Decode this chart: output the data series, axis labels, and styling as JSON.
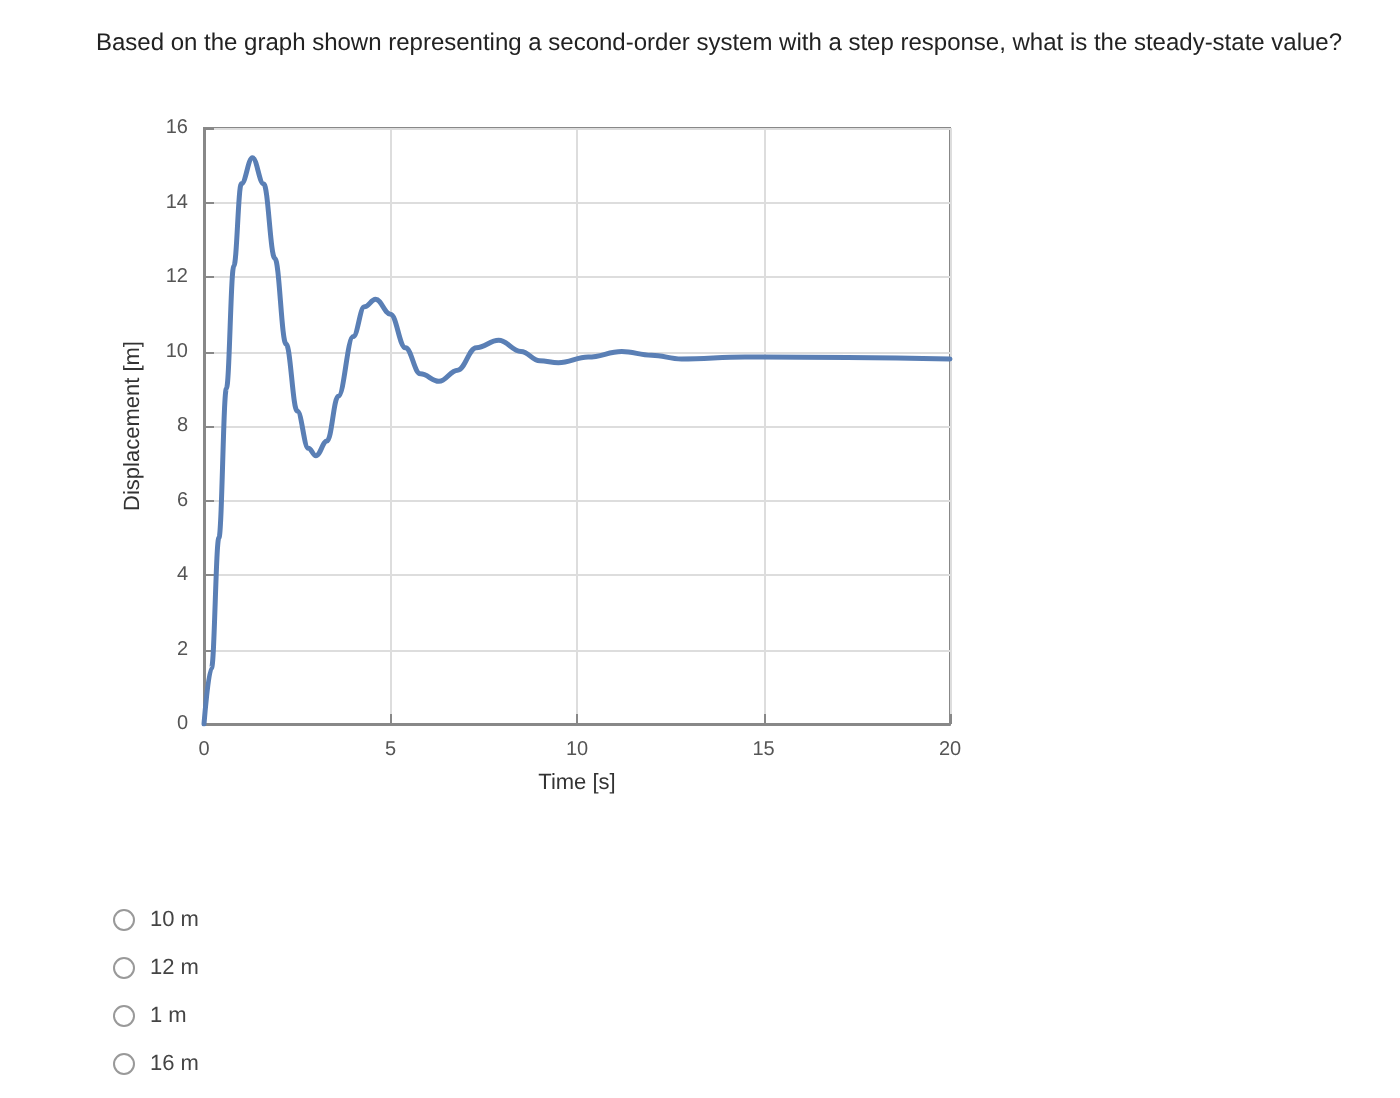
{
  "chart_data": {
    "type": "line",
    "title": "Based on the graph shown representing a second-order system with a step response, what is the steady-state value?",
    "xlabel": "Time [s]",
    "ylabel": "Displacement [m]",
    "series": [
      {
        "color": "#5a7fb5",
        "x": [
          0,
          0.2,
          0.4,
          0.6,
          0.8,
          1.0,
          1.3,
          1.6,
          1.9,
          2.2,
          2.5,
          2.8,
          3.0,
          3.3,
          3.6,
          4.0,
          4.3,
          4.6,
          5.0,
          5.4,
          5.8,
          6.3,
          6.8,
          7.3,
          7.9,
          8.5,
          9.0,
          9.5,
          10.3,
          11.2,
          12.0,
          12.8,
          14.5,
          20
        ],
        "values": [
          0,
          1.5,
          5,
          9,
          12.3,
          14.5,
          15.2,
          14.5,
          12.5,
          10.2,
          8.4,
          7.4,
          7.2,
          7.6,
          8.8,
          10.4,
          11.2,
          11.4,
          11.0,
          10.1,
          9.4,
          9.2,
          9.5,
          10.1,
          10.3,
          10.0,
          9.75,
          9.7,
          9.85,
          10.0,
          9.9,
          9.8,
          9.85,
          9.8
        ]
      }
    ],
    "xlim": [
      0,
      20
    ],
    "xticks": [
      0,
      5,
      10,
      15,
      20
    ],
    "ylim": [
      0,
      16
    ],
    "yticks": [
      0,
      2,
      4,
      6,
      8,
      10,
      12,
      14,
      16
    ],
    "grid": true,
    "marker": "none",
    "line_style": "solid",
    "annotations": [
      "10 m",
      "12 m",
      "1 m",
      "16 m"
    ]
  }
}
